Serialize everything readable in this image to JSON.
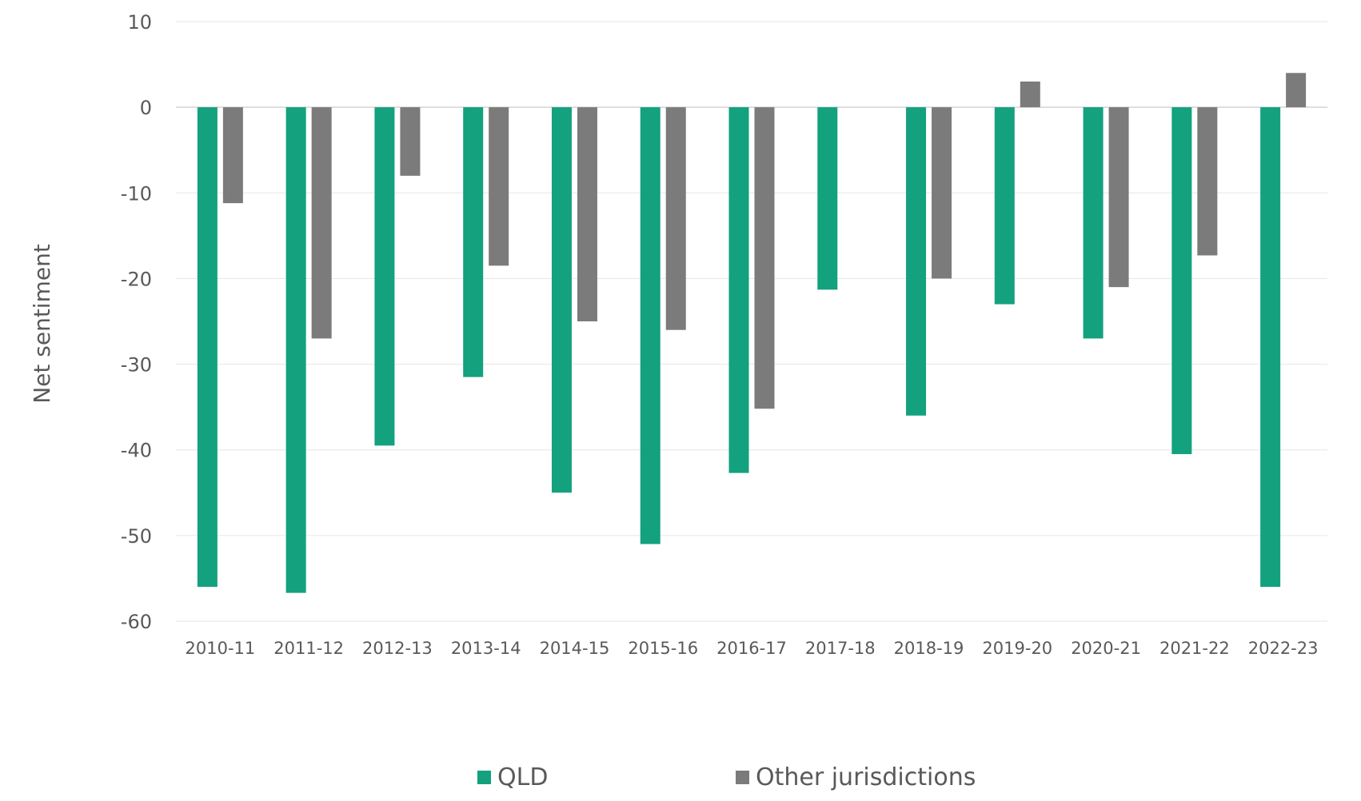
{
  "chart_data": {
    "type": "bar",
    "title": "",
    "xlabel": "",
    "ylabel": "Net sentiment",
    "ylim": [
      -60,
      10
    ],
    "yticks": [
      10,
      0,
      -10,
      -20,
      -30,
      -40,
      -50,
      -60
    ],
    "grid": true,
    "legend_position": "bottom",
    "categories": [
      "2010-11",
      "2011-12",
      "2012-13",
      "2013-14",
      "2014-15",
      "2015-16",
      "2016-17",
      "2017-18",
      "2018-19",
      "2019-20",
      "2020-21",
      "2021-22",
      "2022-23"
    ],
    "series": [
      {
        "name": "QLD",
        "color": "#13a17e",
        "values": [
          -56,
          -56.7,
          -39.5,
          -31.5,
          -45,
          -51,
          -42.7,
          -21.3,
          -36,
          -23,
          -27,
          -40.5,
          -56
        ]
      },
      {
        "name": "Other jurisdictions",
        "color": "#7b7b7b",
        "values": [
          -11.2,
          -27,
          -8,
          -18.5,
          -25,
          -26,
          -35.2,
          0,
          -20,
          3,
          -21,
          -17.3,
          4
        ]
      }
    ]
  }
}
